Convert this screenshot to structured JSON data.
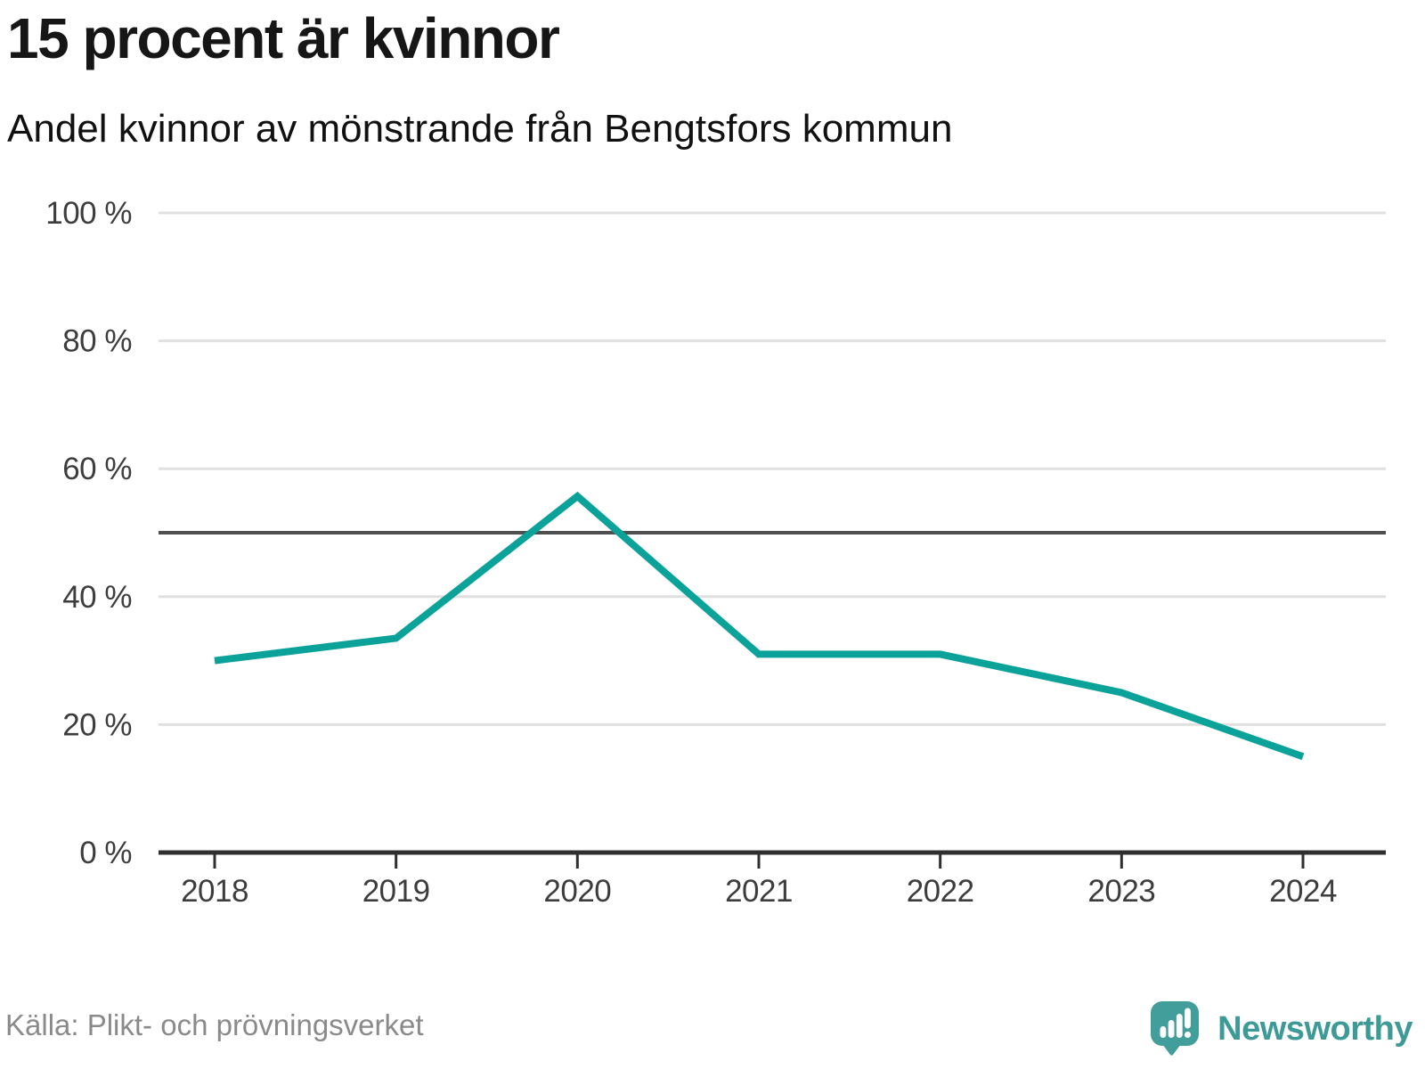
{
  "chart_data": {
    "type": "line",
    "title": "15 procent är kvinnor",
    "subtitle": "Andel kvinnor av mönstrande från Bengtsfors kommun",
    "source": "Källa: Plikt- och prövningsverket",
    "categories": [
      "2018",
      "2019",
      "2020",
      "2021",
      "2022",
      "2023",
      "2024"
    ],
    "series": [
      {
        "name": "Andel kvinnor av mönstrande",
        "values": [
          30,
          33.5,
          55.7,
          31,
          31,
          25,
          15
        ]
      }
    ],
    "unit": "%",
    "ylim": [
      0,
      100
    ],
    "yticks": [
      {
        "value": 0,
        "label": "0 %"
      },
      {
        "value": 20,
        "label": "20 %"
      },
      {
        "value": 40,
        "label": "40 %"
      },
      {
        "value": 60,
        "label": "60 %"
      },
      {
        "value": 80,
        "label": "80 %"
      },
      {
        "value": 100,
        "label": "100 %"
      }
    ],
    "reference_line": {
      "value": 50
    },
    "grid": "horizontal",
    "legend": "none"
  },
  "footer": {
    "brand": "Newsworthy"
  },
  "colors": {
    "line": "#0ba29a",
    "gridline": "#e0e0e0",
    "reference_line": "#4f4f4f",
    "axis": "#2f2f2f",
    "tick_label": "#3d3d3d",
    "title_text": "#161616",
    "source_text": "#8a8a8a",
    "brand_teal": "#429e9a"
  }
}
